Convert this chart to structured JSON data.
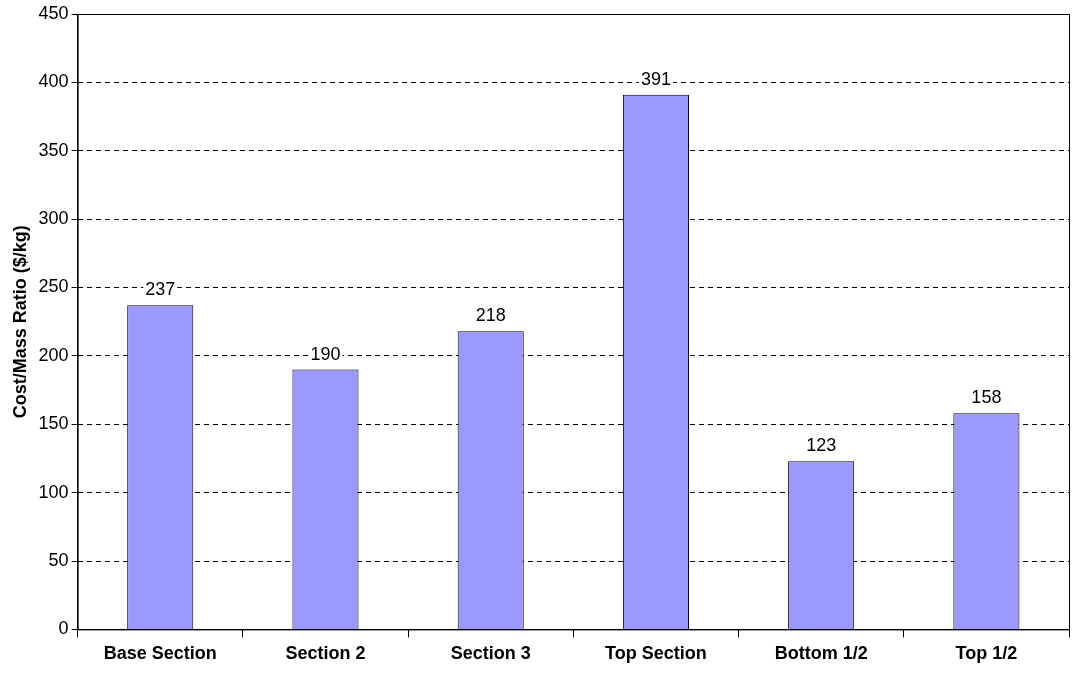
{
  "chart_data": {
    "type": "bar",
    "ylabel": "Cost/Mass Ratio ($/kg)",
    "categories": [
      "Base Section",
      "Section 2",
      "Section 3",
      "Top Section",
      "Bottom 1/2",
      "Top 1/2"
    ],
    "values": [
      237,
      190,
      218,
      391,
      123,
      158
    ],
    "color": "#9999ff",
    "ylim": [
      0,
      450
    ],
    "yticks": [
      0,
      50,
      100,
      150,
      200,
      250,
      300,
      350,
      400,
      450
    ],
    "grid": "y",
    "data_labels": true
  }
}
